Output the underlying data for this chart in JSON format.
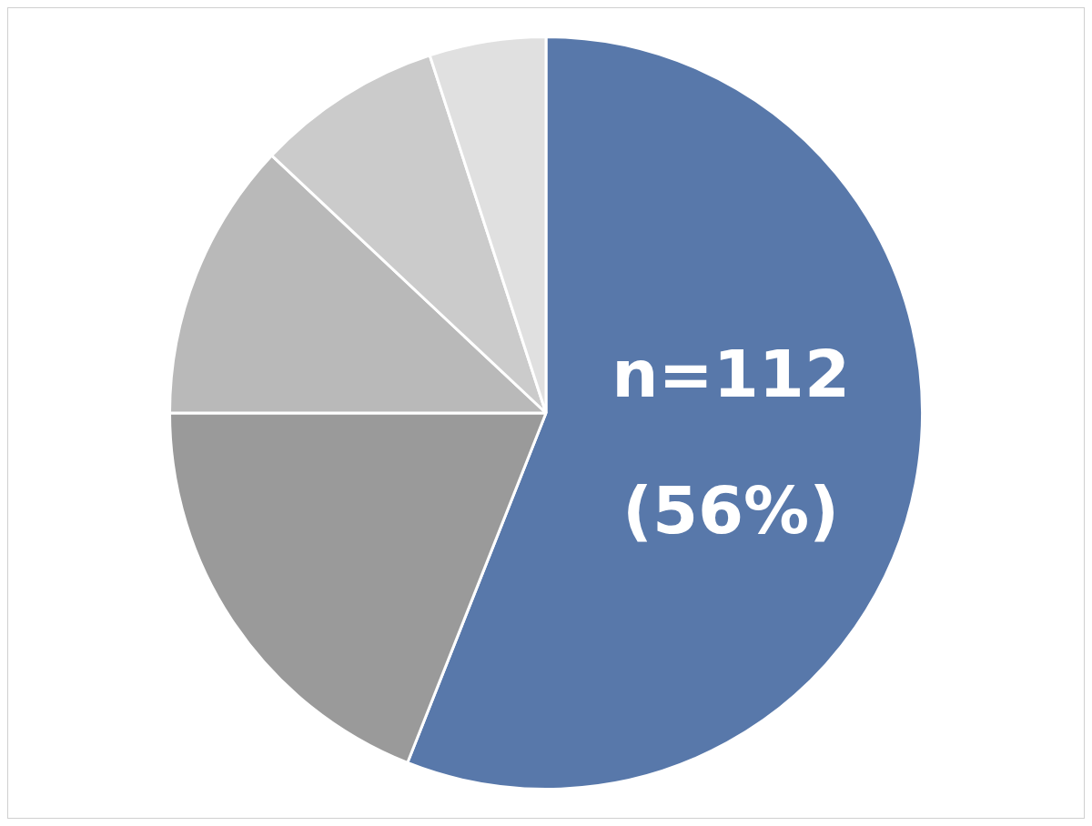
{
  "chart_data": {
    "type": "pie",
    "categories": [
      null,
      null,
      null,
      null,
      null
    ],
    "values": [
      56,
      19,
      12,
      8,
      5
    ],
    "colors": [
      "#5878aa",
      "#9a9a9a",
      "#b9b9b9",
      "#cbcbcb",
      "#e0e0e0"
    ],
    "value_labels": [
      "n=112\n(56%)",
      null,
      null,
      null,
      null
    ],
    "legend": false
  }
}
